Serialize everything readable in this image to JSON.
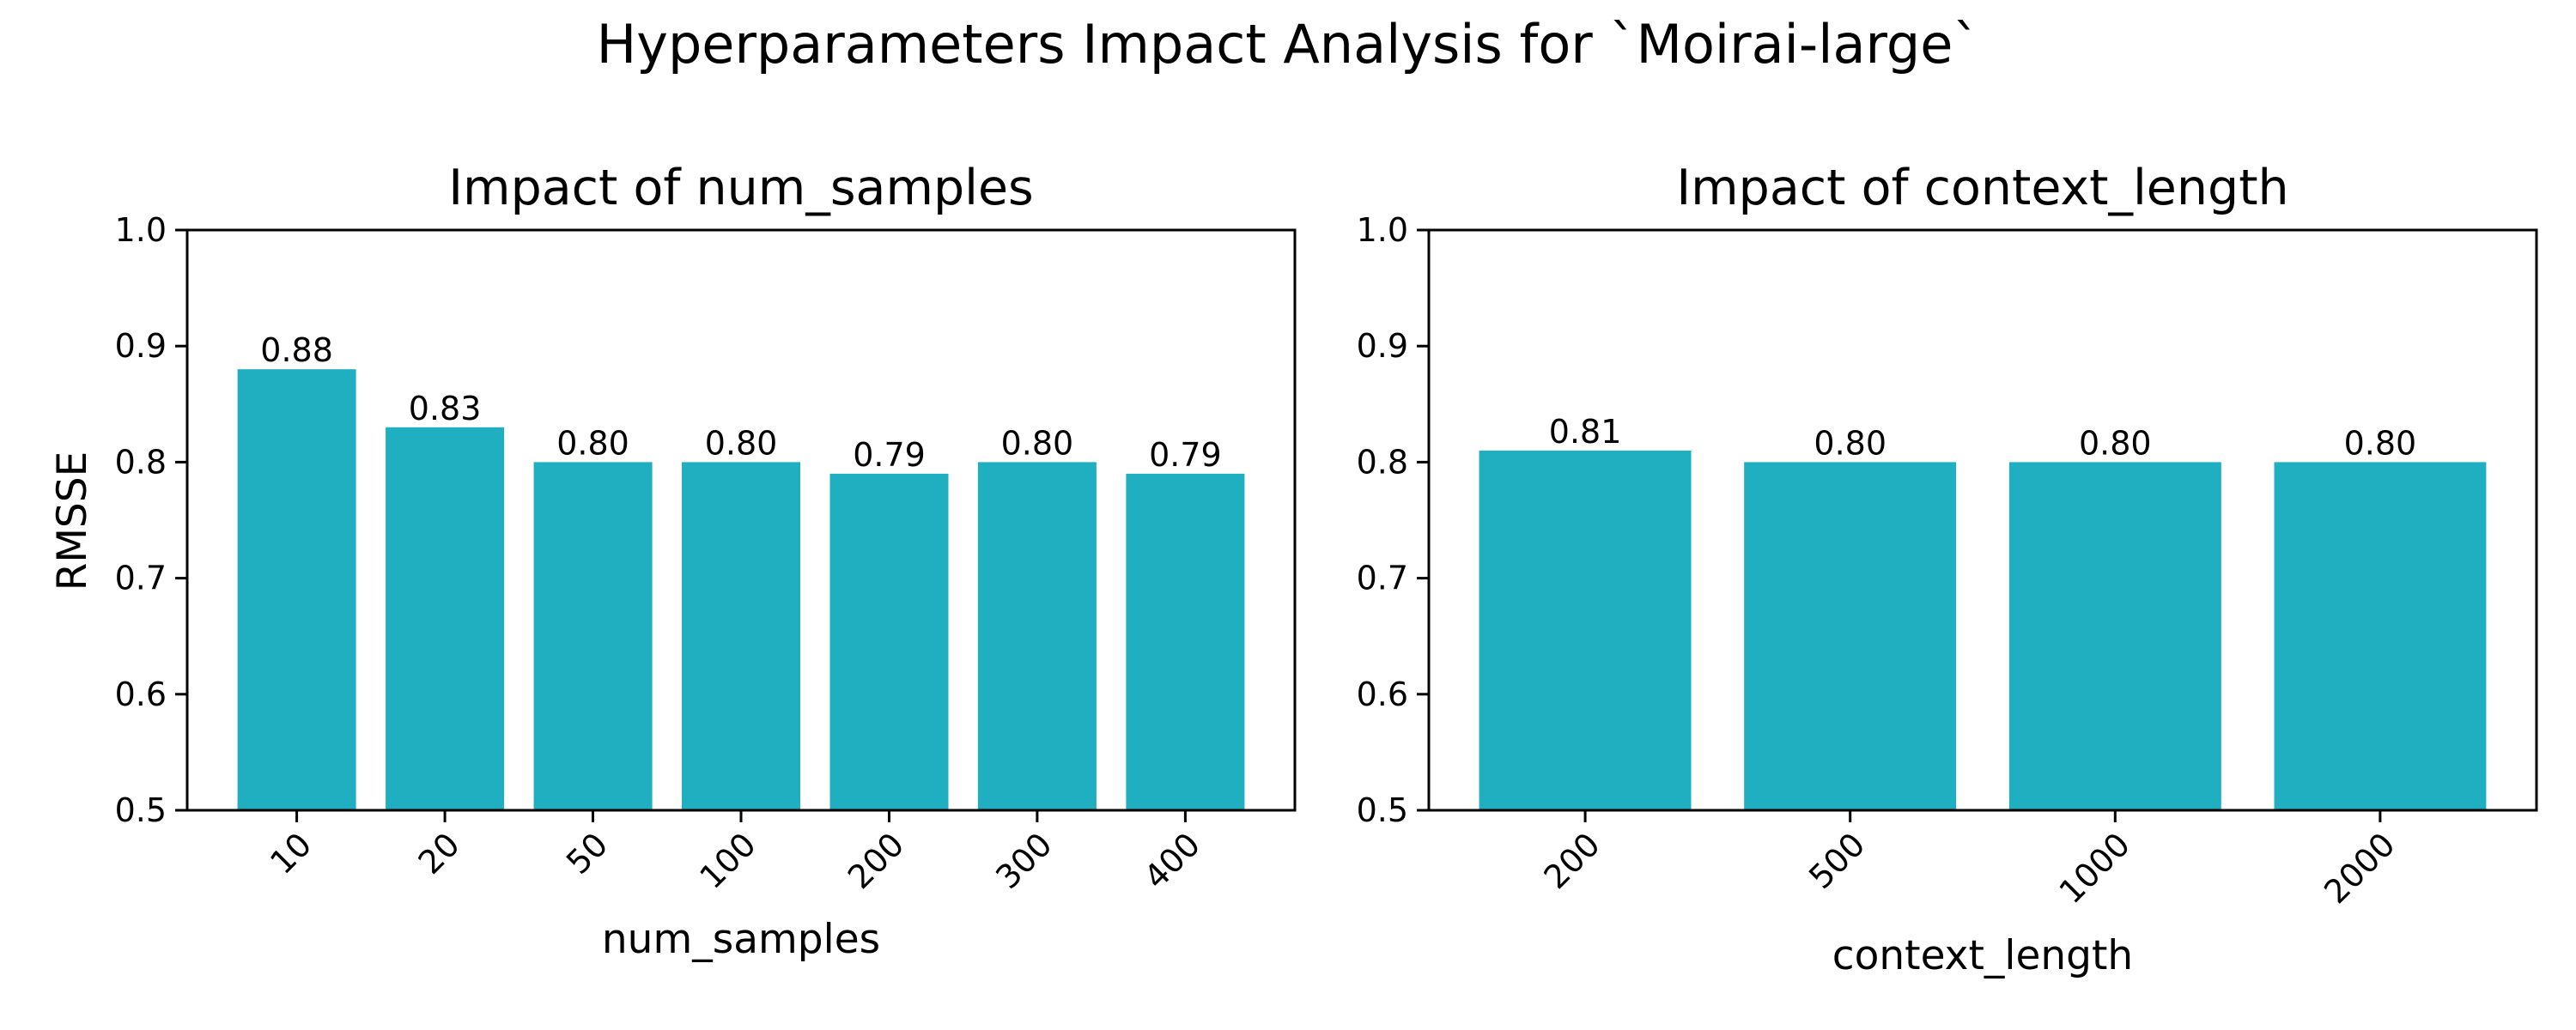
{
  "figure": {
    "title": "Hyperparameters Impact Analysis for `Moirai-large`"
  },
  "chart_data": [
    {
      "type": "bar",
      "title": "Impact of num_samples",
      "xlabel": "num_samples",
      "ylabel": "RMSSE",
      "categories": [
        "10",
        "20",
        "50",
        "100",
        "200",
        "300",
        "400"
      ],
      "values": [
        0.88,
        0.83,
        0.8,
        0.8,
        0.79,
        0.8,
        0.79
      ],
      "data_labels": [
        "0.88",
        "0.83",
        "0.80",
        "0.80",
        "0.79",
        "0.80",
        "0.79"
      ],
      "ylim": [
        0.5,
        1.0
      ],
      "yticks": [
        "0.5",
        "0.6",
        "0.7",
        "0.8",
        "0.9",
        "1.0"
      ],
      "bar_color": "#1fafc1",
      "grid": false
    },
    {
      "type": "bar",
      "title": "Impact of context_length",
      "xlabel": "context_length",
      "ylabel": "",
      "categories": [
        "200",
        "500",
        "1000",
        "2000"
      ],
      "values": [
        0.81,
        0.8,
        0.8,
        0.8
      ],
      "data_labels": [
        "0.81",
        "0.80",
        "0.80",
        "0.80"
      ],
      "ylim": [
        0.5,
        1.0
      ],
      "yticks": [
        "0.5",
        "0.6",
        "0.7",
        "0.8",
        "0.9",
        "1.0"
      ],
      "bar_color": "#1fafc1",
      "grid": false
    }
  ]
}
